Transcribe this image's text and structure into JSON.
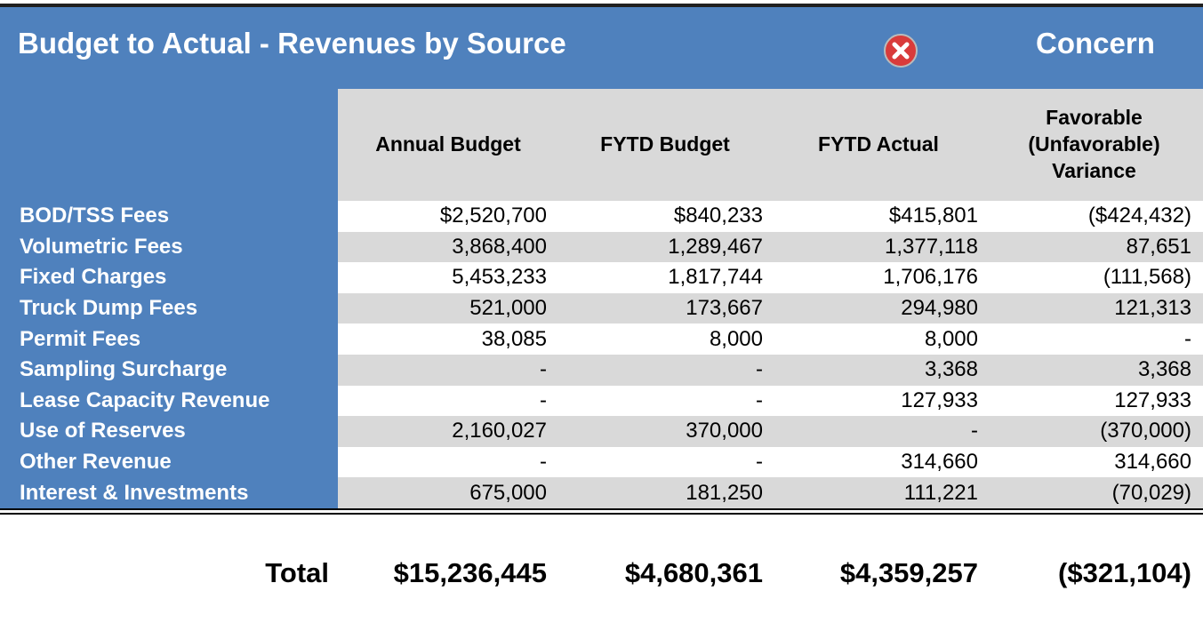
{
  "header": {
    "title": "Budget to Actual - Revenues by Source",
    "status": "Concern"
  },
  "table": {
    "columns": [
      "Annual Budget",
      "FYTD Budget",
      "FYTD Actual",
      "Favorable (Unfavorable) Variance"
    ],
    "rows": [
      [
        "BOD/TSS Fees",
        "$2,520,700",
        "$840,233",
        "$415,801",
        "($424,432)"
      ],
      [
        "Volumetric Fees",
        "3,868,400",
        "1,289,467",
        "1,377,118",
        "87,651"
      ],
      [
        "Fixed Charges",
        "5,453,233",
        "1,817,744",
        "1,706,176",
        "(111,568)"
      ],
      [
        "Truck Dump Fees",
        "521,000",
        "173,667",
        "294,980",
        "121,313"
      ],
      [
        "Permit Fees",
        "38,085",
        "8,000",
        "8,000",
        "-"
      ],
      [
        "Sampling Surcharge",
        "-",
        "-",
        "3,368",
        "3,368"
      ],
      [
        "Lease Capacity Revenue",
        "-",
        "-",
        "127,933",
        "127,933"
      ],
      [
        "Use of Reserves",
        "2,160,027",
        "370,000",
        "-",
        "(370,000)"
      ],
      [
        "Other Revenue",
        "-",
        "-",
        "314,660",
        "314,660"
      ],
      [
        "Interest & Investments",
        "675,000",
        "181,250",
        "111,221",
        "(70,029)"
      ]
    ],
    "total": [
      "Total",
      "$15,236,445",
      "$4,680,361",
      "$4,359,257",
      "($321,104)"
    ]
  }
}
